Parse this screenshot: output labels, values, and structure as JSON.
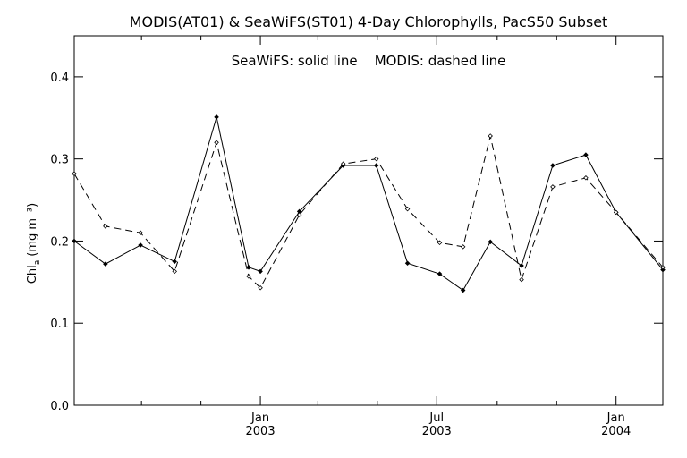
{
  "chart_data": {
    "type": "line",
    "title": "MODIS(AT01) & SeaWiFS(ST01) 4-Day Chlorophylls, PacS50 Subset",
    "annotation": "SeaWiFS: solid line    MODIS: dashed line",
    "ylabel": "Chl",
    "ylabel_sub": "a",
    "ylabel_units": "(mg m⁻³)",
    "ylim": [
      0.0,
      0.45
    ],
    "yticks": [
      0.0,
      0.1,
      0.2,
      0.3,
      0.4
    ],
    "ytick_labels": [
      "0.0",
      "0.1",
      "0.2",
      "0.3",
      "0.4"
    ],
    "xlim": [
      "2002-06-24",
      "2004-02-18"
    ],
    "x_tick_labels": [
      {
        "month": "Jan",
        "year": "2003",
        "date": "2003-01-01"
      },
      {
        "month": "Jul",
        "year": "2003",
        "date": "2003-07-01"
      },
      {
        "month": "Jan",
        "year": "2004",
        "date": "2004-01-01"
      }
    ],
    "x_minor_ticks": [
      "2002-09-01",
      "2002-11-01",
      "2003-03-01",
      "2003-05-01",
      "2003-09-01",
      "2003-11-01"
    ],
    "grid": false,
    "series": [
      {
        "name": "SeaWiFS",
        "style": "solid",
        "points": [
          {
            "x": "2002-06-24",
            "y": 0.2
          },
          {
            "x": "2002-07-26",
            "y": 0.172
          },
          {
            "x": "2002-08-31",
            "y": 0.195
          },
          {
            "x": "2002-10-05",
            "y": 0.175
          },
          {
            "x": "2002-11-17",
            "y": 0.351
          },
          {
            "x": "2002-12-20",
            "y": 0.168
          },
          {
            "x": "2003-01-01",
            "y": 0.163
          },
          {
            "x": "2003-02-10",
            "y": 0.236
          },
          {
            "x": "2003-03-27",
            "y": 0.292
          },
          {
            "x": "2003-04-30",
            "y": 0.292
          },
          {
            "x": "2003-06-01",
            "y": 0.173
          },
          {
            "x": "2003-07-04",
            "y": 0.16
          },
          {
            "x": "2003-07-28",
            "y": 0.14
          },
          {
            "x": "2003-08-25",
            "y": 0.199
          },
          {
            "x": "2003-09-26",
            "y": 0.17
          },
          {
            "x": "2003-10-28",
            "y": 0.292
          },
          {
            "x": "2003-12-01",
            "y": 0.305
          },
          {
            "x": "2004-01-01",
            "y": 0.235
          },
          {
            "x": "2004-02-18",
            "y": 0.165
          }
        ]
      },
      {
        "name": "MODIS",
        "style": "dashed",
        "points": [
          {
            "x": "2002-06-24",
            "y": 0.282
          },
          {
            "x": "2002-07-26",
            "y": 0.218
          },
          {
            "x": "2002-08-31",
            "y": 0.21
          },
          {
            "x": "2002-10-05",
            "y": 0.163
          },
          {
            "x": "2002-11-17",
            "y": 0.32
          },
          {
            "x": "2002-12-20",
            "y": 0.157
          },
          {
            "x": "2003-01-01",
            "y": 0.143
          },
          {
            "x": "2003-02-10",
            "y": 0.232
          },
          {
            "x": "2003-03-27",
            "y": 0.294
          },
          {
            "x": "2003-04-30",
            "y": 0.3
          },
          {
            "x": "2003-06-01",
            "y": 0.239
          },
          {
            "x": "2003-07-04",
            "y": 0.198
          },
          {
            "x": "2003-07-28",
            "y": 0.193
          },
          {
            "x": "2003-08-25",
            "y": 0.328
          },
          {
            "x": "2003-09-26",
            "y": 0.153
          },
          {
            "x": "2003-10-28",
            "y": 0.266
          },
          {
            "x": "2003-12-01",
            "y": 0.277
          },
          {
            "x": "2004-01-01",
            "y": 0.235
          },
          {
            "x": "2004-02-18",
            "y": 0.168
          }
        ]
      }
    ]
  }
}
